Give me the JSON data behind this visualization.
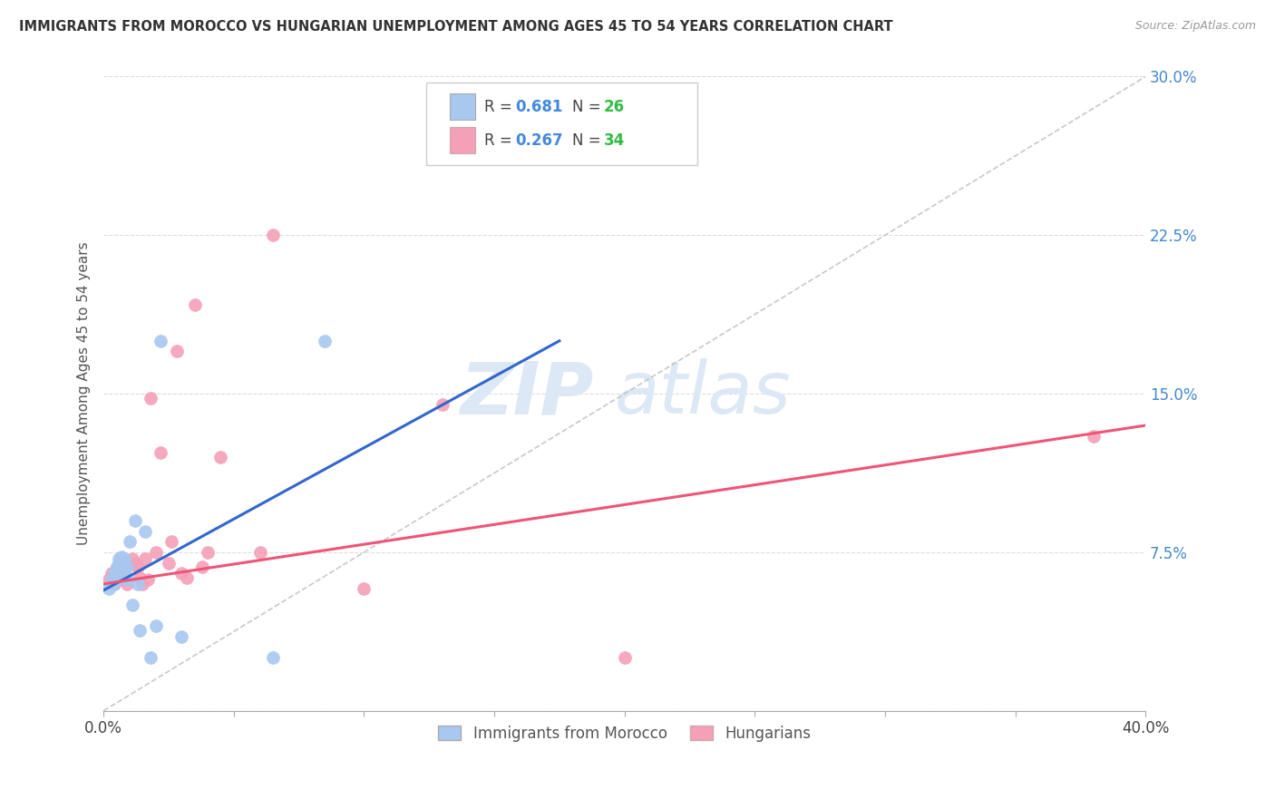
{
  "title": "IMMIGRANTS FROM MOROCCO VS HUNGARIAN UNEMPLOYMENT AMONG AGES 45 TO 54 YEARS CORRELATION CHART",
  "source": "Source: ZipAtlas.com",
  "ylabel": "Unemployment Among Ages 45 to 54 years",
  "xlim": [
    0.0,
    0.4
  ],
  "ylim": [
    0.0,
    0.3
  ],
  "xticks": [
    0.0,
    0.05,
    0.1,
    0.15,
    0.2,
    0.25,
    0.3,
    0.35,
    0.4
  ],
  "yticks": [
    0.0,
    0.075,
    0.15,
    0.225,
    0.3
  ],
  "xtick_labels_left": "0.0%",
  "xtick_labels_right": "40.0%",
  "ytick_labels": [
    "",
    "7.5%",
    "15.0%",
    "22.5%",
    "30.0%"
  ],
  "legend_r1": "0.681",
  "legend_n1": "26",
  "legend_r2": "0.267",
  "legend_n2": "34",
  "blue_color": "#a8c8f0",
  "pink_color": "#f4a0b8",
  "blue_line_color": "#3366cc",
  "pink_line_color": "#ee5577",
  "ref_line_color": "#bbbbbb",
  "watermark_zip": "ZIP",
  "watermark_atlas": "atlas",
  "blue_scatter_x": [
    0.002,
    0.003,
    0.004,
    0.004,
    0.005,
    0.005,
    0.006,
    0.006,
    0.007,
    0.007,
    0.008,
    0.008,
    0.009,
    0.009,
    0.01,
    0.011,
    0.012,
    0.013,
    0.014,
    0.016,
    0.018,
    0.02,
    0.022,
    0.03,
    0.065,
    0.085
  ],
  "blue_scatter_y": [
    0.058,
    0.062,
    0.065,
    0.06,
    0.068,
    0.065,
    0.07,
    0.072,
    0.068,
    0.073,
    0.072,
    0.065,
    0.062,
    0.068,
    0.08,
    0.05,
    0.09,
    0.06,
    0.038,
    0.085,
    0.025,
    0.04,
    0.175,
    0.035,
    0.025,
    0.175
  ],
  "pink_scatter_x": [
    0.002,
    0.003,
    0.004,
    0.005,
    0.006,
    0.007,
    0.008,
    0.009,
    0.01,
    0.011,
    0.012,
    0.013,
    0.014,
    0.015,
    0.016,
    0.017,
    0.018,
    0.02,
    0.022,
    0.025,
    0.026,
    0.028,
    0.03,
    0.032,
    0.035,
    0.038,
    0.04,
    0.045,
    0.06,
    0.065,
    0.1,
    0.13,
    0.2,
    0.38
  ],
  "pink_scatter_y": [
    0.062,
    0.065,
    0.06,
    0.068,
    0.062,
    0.065,
    0.068,
    0.06,
    0.07,
    0.072,
    0.07,
    0.068,
    0.063,
    0.06,
    0.072,
    0.062,
    0.148,
    0.075,
    0.122,
    0.07,
    0.08,
    0.17,
    0.065,
    0.063,
    0.192,
    0.068,
    0.075,
    0.12,
    0.075,
    0.225,
    0.058,
    0.145,
    0.025,
    0.13
  ],
  "blue_trendline_x0": 0.0,
  "blue_trendline_y0": 0.057,
  "blue_trendline_x1": 0.175,
  "blue_trendline_y1": 0.175,
  "pink_trendline_x0": 0.0,
  "pink_trendline_y0": 0.06,
  "pink_trendline_x1": 0.4,
  "pink_trendline_y1": 0.135
}
